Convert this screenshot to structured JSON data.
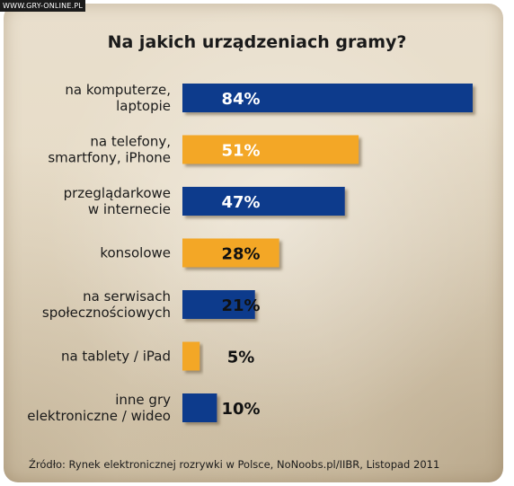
{
  "watermark": "WWW.GRY-ONLINE.PL",
  "colors": {
    "blue": "#0d3b8c",
    "orange": "#f3a728",
    "background": "#e7dcc7"
  },
  "chart_data": {
    "type": "bar",
    "orientation": "horizontal",
    "title": "Na jakich urządzeniach gramy?",
    "categories": [
      [
        "na komputerze,",
        "laptopie"
      ],
      [
        "na telefony,",
        "smartfony, iPhone"
      ],
      [
        "przeglądarkowe",
        "w internecie"
      ],
      [
        "konsolowe"
      ],
      [
        "na serwisach",
        "społecznościowych"
      ],
      [
        "na tablety / iPad"
      ],
      [
        "inne gry",
        "elektroniczne / wideo"
      ]
    ],
    "values": [
      84,
      51,
      47,
      28,
      21,
      5,
      10
    ],
    "value_labels": [
      "84%",
      "51%",
      "47%",
      "28%",
      "21%",
      "5%",
      "10%"
    ],
    "bar_colors": [
      "blue",
      "orange",
      "blue",
      "orange",
      "blue",
      "orange",
      "blue"
    ],
    "xlim": [
      0,
      84
    ],
    "grid": false,
    "legend": "none"
  },
  "source": "Źródło: Rynek elektronicznej rozrywki w Polsce, NoNoobs.pl/IIBR,  Listopad 2011"
}
